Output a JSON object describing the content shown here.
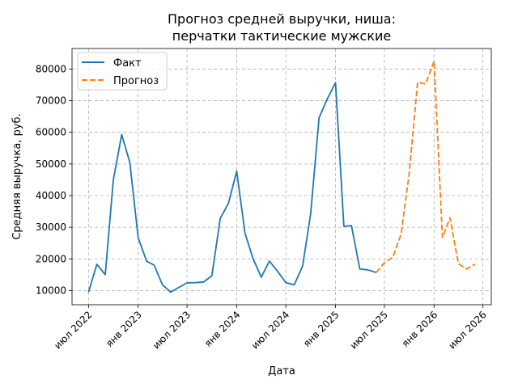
{
  "chart_data": {
    "type": "line",
    "title": [
      "Прогноз средней выручки, ниша:",
      "перчатки тактические мужские"
    ],
    "xlabel": "Дата",
    "ylabel": "Средняя выручка, руб.",
    "x_axis": {
      "type": "date",
      "range": [
        "2022-05-01",
        "2026-08-01"
      ],
      "ticks": [
        {
          "date": "2022-07-01",
          "label": "июл 2022"
        },
        {
          "date": "2023-01-01",
          "label": "янв 2023"
        },
        {
          "date": "2023-07-01",
          "label": "июл 2023"
        },
        {
          "date": "2024-01-01",
          "label": "янв 2024"
        },
        {
          "date": "2024-07-01",
          "label": "июл 2024"
        },
        {
          "date": "2025-01-01",
          "label": "янв 2025"
        },
        {
          "date": "2025-07-01",
          "label": "июл 2025"
        },
        {
          "date": "2026-01-01",
          "label": "янв 2026"
        },
        {
          "date": "2026-07-01",
          "label": "июл 2026"
        }
      ]
    },
    "y_axis": {
      "range": [
        5500,
        86500
      ],
      "ticks": [
        {
          "value": 10000,
          "label": "10000"
        },
        {
          "value": 20000,
          "label": "20000"
        },
        {
          "value": 30000,
          "label": "30000"
        },
        {
          "value": 40000,
          "label": "40000"
        },
        {
          "value": 50000,
          "label": "50000"
        },
        {
          "value": 60000,
          "label": "60000"
        },
        {
          "value": 70000,
          "label": "70000"
        },
        {
          "value": 80000,
          "label": "80000"
        }
      ]
    },
    "grid": true,
    "legend_position": "top-left",
    "series": [
      {
        "name": "Факт",
        "color": "#1f77b4",
        "style": "solid",
        "points": [
          [
            "2022-07-01",
            9500
          ],
          [
            "2022-08-01",
            18300
          ],
          [
            "2022-09-01",
            15000
          ],
          [
            "2022-10-01",
            45000
          ],
          [
            "2022-11-01",
            59300
          ],
          [
            "2022-12-01",
            50500
          ],
          [
            "2023-01-01",
            26700
          ],
          [
            "2023-02-01",
            19300
          ],
          [
            "2023-03-01",
            18000
          ],
          [
            "2023-04-01",
            11800
          ],
          [
            "2023-05-01",
            9500
          ],
          [
            "2023-06-01",
            11000
          ],
          [
            "2023-07-01",
            12400
          ],
          [
            "2023-08-01",
            12500
          ],
          [
            "2023-09-01",
            12700
          ],
          [
            "2023-10-01",
            14700
          ],
          [
            "2023-11-01",
            32800
          ],
          [
            "2023-12-01",
            37500
          ],
          [
            "2024-01-01",
            47700
          ],
          [
            "2024-02-01",
            28000
          ],
          [
            "2024-03-01",
            20200
          ],
          [
            "2024-04-01",
            14200
          ],
          [
            "2024-05-01",
            19300
          ],
          [
            "2024-06-01",
            16000
          ],
          [
            "2024-07-01",
            12500
          ],
          [
            "2024-08-01",
            11800
          ],
          [
            "2024-09-01",
            17700
          ],
          [
            "2024-10-01",
            34300
          ],
          [
            "2024-11-01",
            64600
          ],
          [
            "2024-12-01",
            70500
          ],
          [
            "2025-01-01",
            75700
          ],
          [
            "2025-02-01",
            30300
          ],
          [
            "2025-03-01",
            30500
          ],
          [
            "2025-04-01",
            16800
          ],
          [
            "2025-05-01",
            16500
          ],
          [
            "2025-06-01",
            15700
          ]
        ]
      },
      {
        "name": "Прогноз",
        "color": "#ff7f0e",
        "style": "dashed",
        "points": [
          [
            "2025-06-01",
            15700
          ],
          [
            "2025-07-01",
            18800
          ],
          [
            "2025-08-01",
            20500
          ],
          [
            "2025-09-01",
            27800
          ],
          [
            "2025-10-01",
            47000
          ],
          [
            "2025-11-01",
            75800
          ],
          [
            "2025-12-01",
            75300
          ],
          [
            "2026-01-01",
            82500
          ],
          [
            "2026-02-01",
            26800
          ],
          [
            "2026-03-01",
            33000
          ],
          [
            "2026-04-01",
            18500
          ],
          [
            "2026-05-01",
            16800
          ],
          [
            "2026-06-01",
            18300
          ]
        ]
      }
    ]
  }
}
